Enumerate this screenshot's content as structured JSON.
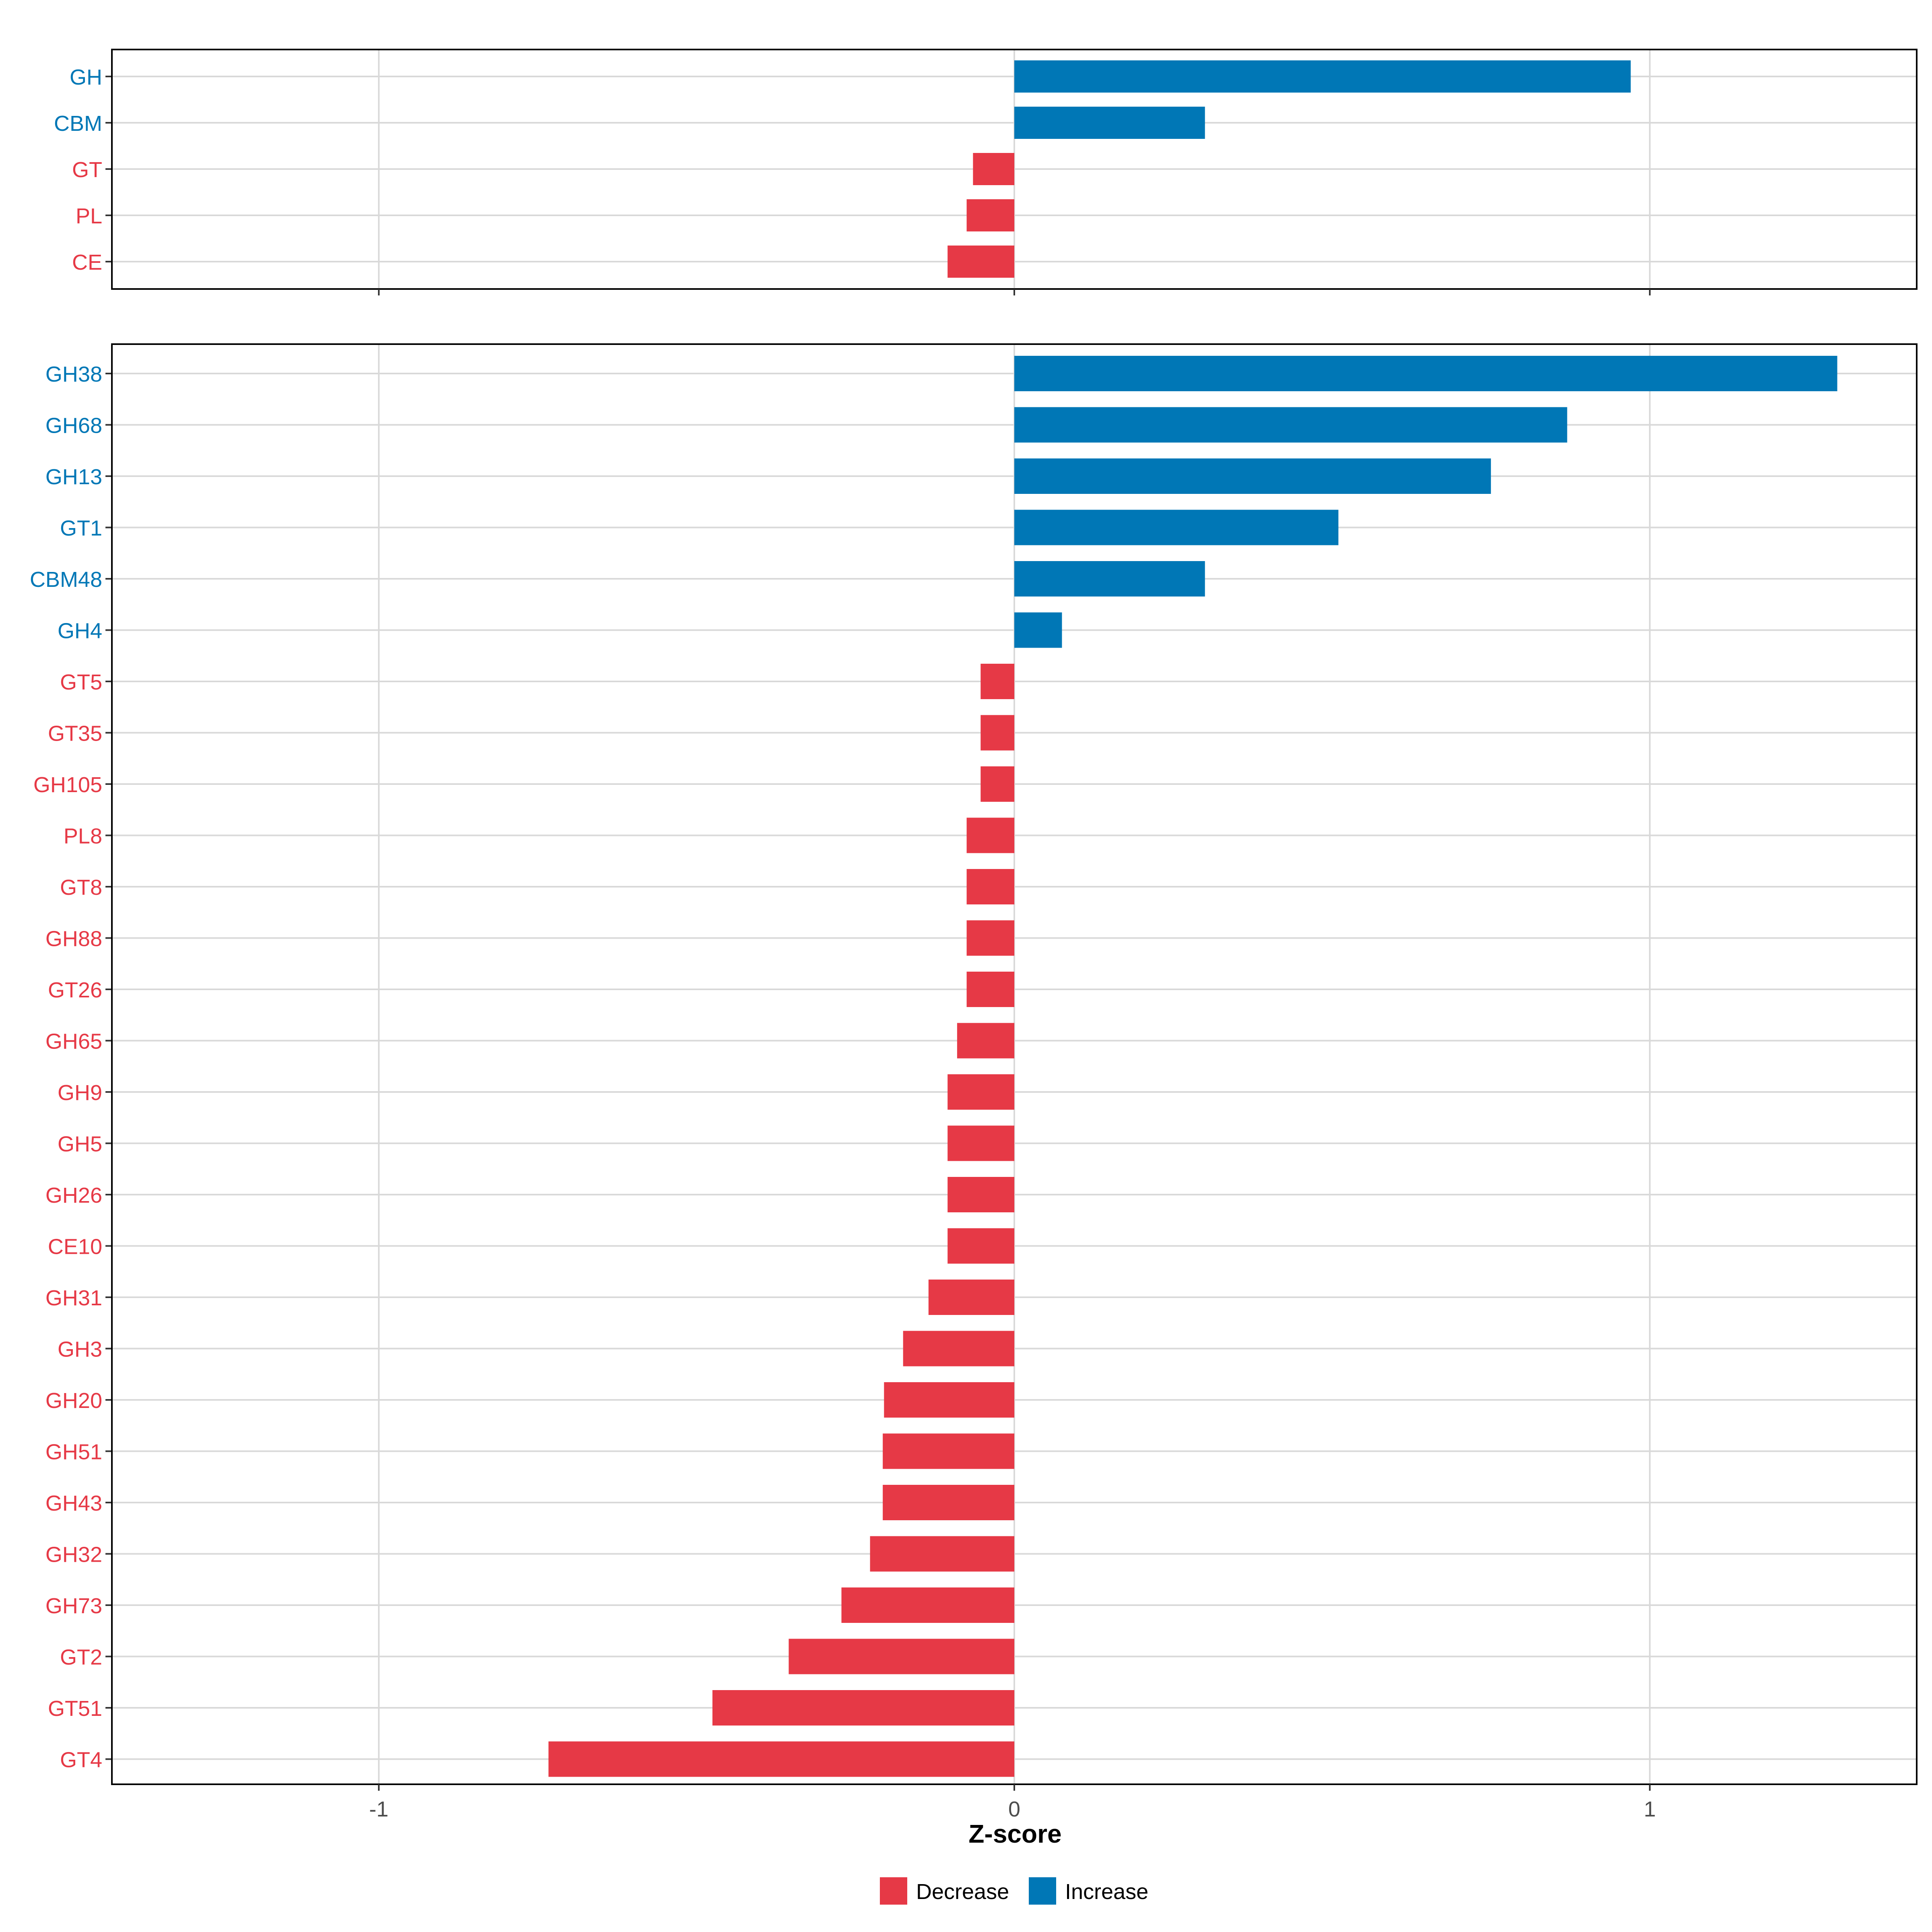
{
  "colors": {
    "increase": "#0077b6",
    "decrease": "#e63946",
    "grid": "#d9d9d9",
    "frame": "#000000",
    "tick_text": "#4d4d4d"
  },
  "chart_data": [
    {
      "type": "bar",
      "orientation": "horizontal",
      "panel": "top",
      "categories": [
        "GH",
        "CBM",
        "GT",
        "PL",
        "CE"
      ],
      "values": [
        0.97,
        0.3,
        -0.065,
        -0.075,
        -0.105
      ],
      "xlim": [
        -1.42,
        1.42
      ],
      "xticks": [
        -1,
        0,
        1
      ],
      "grid": true
    },
    {
      "type": "bar",
      "orientation": "horizontal",
      "panel": "bottom",
      "categories": [
        "GH38",
        "GH68",
        "GH13",
        "GT1",
        "CBM48",
        "GH4",
        "GT5",
        "GT35",
        "GH105",
        "PL8",
        "GT8",
        "GH88",
        "GT26",
        "GH65",
        "GH9",
        "GH5",
        "GH26",
        "CE10",
        "GH31",
        "GH3",
        "GH20",
        "GH51",
        "GH43",
        "GH32",
        "GH73",
        "GT2",
        "GT51",
        "GT4"
      ],
      "values": [
        1.295,
        0.87,
        0.75,
        0.51,
        0.3,
        0.075,
        -0.053,
        -0.053,
        -0.053,
        -0.075,
        -0.075,
        -0.075,
        -0.075,
        -0.09,
        -0.105,
        -0.105,
        -0.105,
        -0.105,
        -0.135,
        -0.175,
        -0.205,
        -0.207,
        -0.207,
        -0.227,
        -0.272,
        -0.355,
        -0.475,
        -0.733
      ],
      "xlim": [
        -1.42,
        1.42
      ],
      "xticks": [
        -1,
        0,
        1
      ],
      "xticklabels": [
        "-1",
        "0",
        "1"
      ],
      "xlabel": "Z-score",
      "grid": true
    }
  ],
  "legend": {
    "position": "bottom-center",
    "items": [
      {
        "label": "Decrease",
        "key": "decrease"
      },
      {
        "label": "Increase",
        "key": "increase"
      }
    ]
  }
}
